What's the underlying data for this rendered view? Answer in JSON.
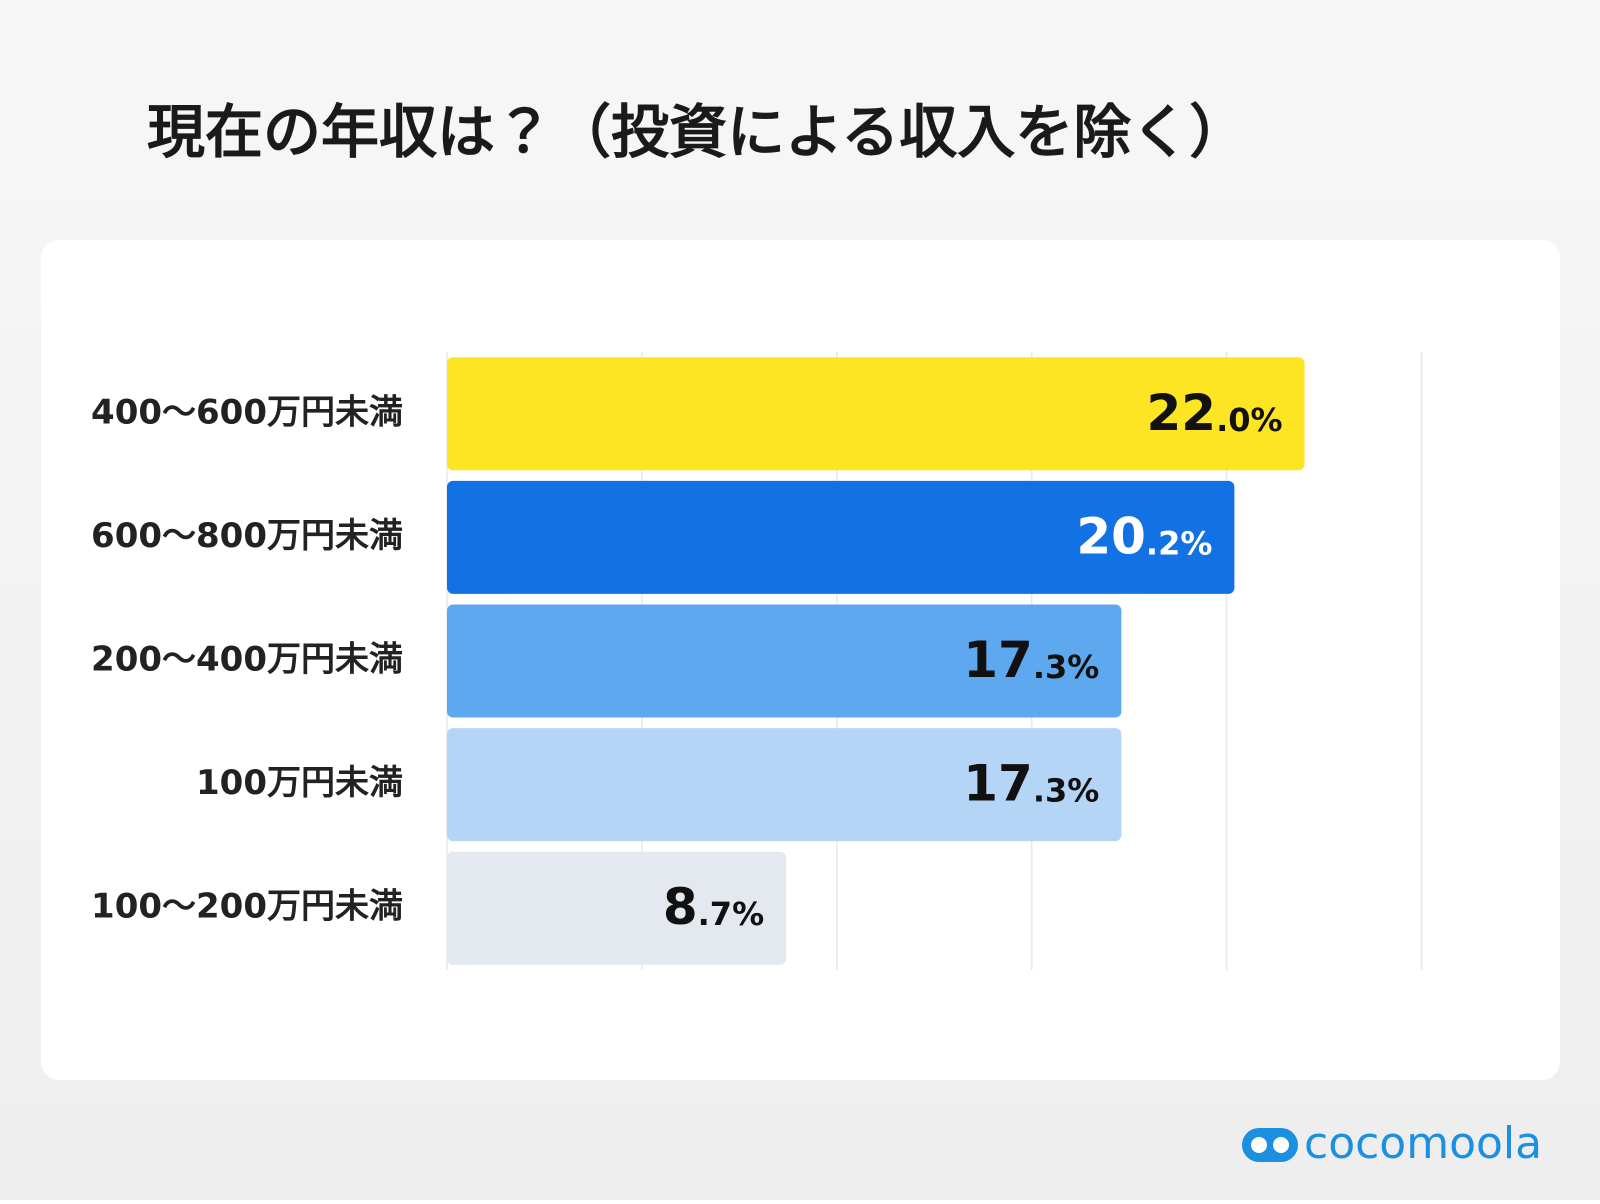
{
  "chart_data": {
    "type": "barh",
    "title": "現在の年収は？（投資による収入を除く）",
    "categories": [
      "400〜600万円未満",
      "600〜800万円未満",
      "200〜400万円未満",
      "100万円未満",
      "100〜200万円未満"
    ],
    "values": [
      22.0,
      20.2,
      17.3,
      17.3,
      8.7
    ],
    "value_labels": [
      "22.0%",
      "20.2%",
      "17.3%",
      "17.3%",
      "8.7%"
    ],
    "colors": [
      "#fde524",
      "#1372e3",
      "#5ea8f0",
      "#b5d5f7",
      "#e4e8ef"
    ],
    "xlim": [
      0,
      25
    ],
    "xticks": [
      0,
      5,
      10,
      15,
      20,
      25
    ],
    "grid": true,
    "logo": "cocomoola"
  }
}
